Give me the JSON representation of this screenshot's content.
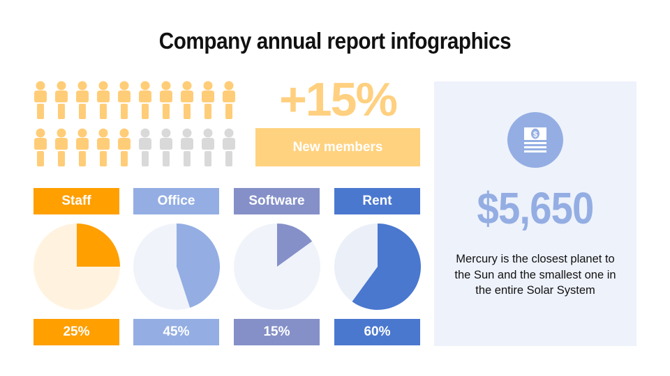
{
  "title": "Company annual report infographics",
  "members": {
    "growth": "+15%",
    "label": "New members",
    "filled_count": 15,
    "total_count": 20,
    "filled_color": "#FFCD78",
    "empty_color": "#D9D9D9"
  },
  "summary": {
    "amount": "$5,650",
    "description": "Mercury is the closest planet to the Sun and the smallest one in the entire Solar System",
    "icon": "money-stack-icon"
  },
  "chart_data": {
    "type": "pie",
    "categories": [
      "Staff",
      "Office",
      "Software",
      "Rent"
    ],
    "values": [
      25,
      45,
      15,
      60
    ],
    "value_labels": [
      "25%",
      "45%",
      "15%",
      "60%"
    ],
    "colors": [
      "#FF9F00",
      "#94AEE3",
      "#8590C8",
      "#4A78CF"
    ],
    "background_colors": [
      "#FFF3E0",
      "#F0F3FA",
      "#F0F3FA",
      "#EAEFF8"
    ]
  }
}
